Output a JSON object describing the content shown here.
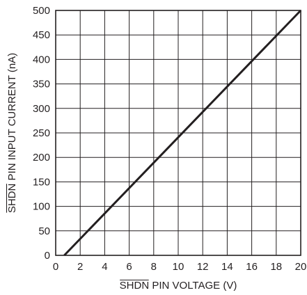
{
  "chart_data": {
    "type": "line",
    "xlabel_overlined": "SHDN",
    "xlabel_rest": " PIN VOLTAGE (V)",
    "ylabel_overlined": "SHDN",
    "ylabel_rest": " PIN INPUT CURRENT (nA)",
    "xlim": [
      0,
      20
    ],
    "ylim": [
      0,
      500
    ],
    "x_ticks": [
      "0",
      "2",
      "4",
      "6",
      "8",
      "10",
      "12",
      "14",
      "16",
      "18",
      "20"
    ],
    "y_ticks": [
      "0",
      "50",
      "100",
      "150",
      "200",
      "250",
      "300",
      "350",
      "400",
      "450",
      "500"
    ],
    "grid": true,
    "series": [
      {
        "x": [
          0.7,
          20
        ],
        "y": [
          0,
          500
        ]
      }
    ]
  }
}
